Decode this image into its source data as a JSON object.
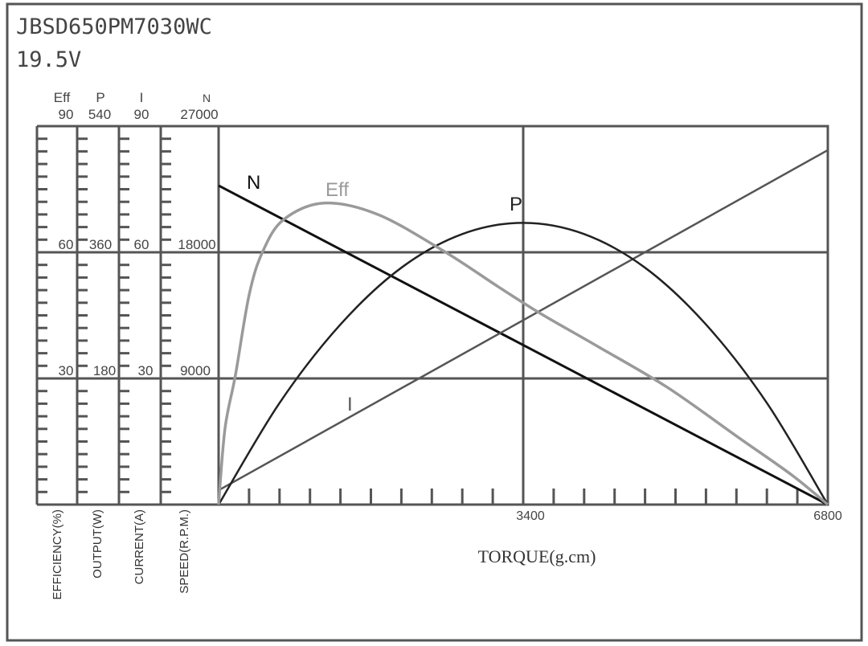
{
  "title": "JBSD650PM7030WC",
  "subtitle": "19.5V",
  "colors": {
    "frame": "#555555",
    "grid": "#555555",
    "N": "#111111",
    "P": "#222222",
    "Eff": "#9a9a9a",
    "I": "#555555"
  },
  "chart_data": {
    "type": "line",
    "xlabel": "TORQUE(g.cm)",
    "xlim": [
      0,
      6800
    ],
    "x_tick_labels": [
      "3400",
      "6800"
    ],
    "x_tick_values": [
      3400,
      6800
    ],
    "x_minor_tick_step": 340,
    "grid": true,
    "y_axes": [
      {
        "key": "Eff",
        "header": "Eff",
        "label": "EFFICIENCY(%)",
        "range": [
          0,
          90
        ],
        "tick_labels": [
          "30",
          "60",
          "90"
        ]
      },
      {
        "key": "P",
        "header": "P",
        "label": "OUTPUT(W)",
        "range": [
          0,
          540
        ],
        "tick_labels": [
          "180",
          "360",
          "540"
        ]
      },
      {
        "key": "I",
        "header": "I",
        "label": "CURRENT(A)",
        "range": [
          0,
          90
        ],
        "tick_labels": [
          "30",
          "60",
          "90"
        ]
      },
      {
        "key": "N",
        "header": "N",
        "label": "SPEED(R.P.M.)",
        "range": [
          0,
          27000
        ],
        "tick_labels": [
          "9000",
          "18000",
          "27000"
        ]
      }
    ],
    "series": [
      {
        "name": "N",
        "axis": "N",
        "x": [
          0,
          6800
        ],
        "y": [
          22760,
          0
        ]
      },
      {
        "name": "I",
        "axis": "I",
        "x": [
          0,
          6800
        ],
        "y": [
          3.4,
          84.3
        ]
      },
      {
        "name": "P",
        "axis": "P",
        "x": [
          0,
          680,
          1360,
          2040,
          2720,
          3400,
          4080,
          4760,
          5440,
          6120,
          6800
        ],
        "y": [
          0,
          145,
          257,
          338,
          386,
          402,
          386,
          338,
          257,
          145,
          0
        ]
      },
      {
        "name": "Eff",
        "axis": "Eff",
        "x": [
          0,
          72,
          188,
          341,
          493,
          727,
          1175,
          1776,
          2520,
          3122,
          3588,
          4200,
          5000,
          5800,
          6400,
          6800
        ],
        "y": [
          0,
          18.2,
          30.8,
          49.9,
          60.2,
          67.8,
          71.7,
          69,
          60.2,
          51.8,
          45.5,
          38,
          28,
          16,
          7,
          0
        ]
      }
    ]
  }
}
